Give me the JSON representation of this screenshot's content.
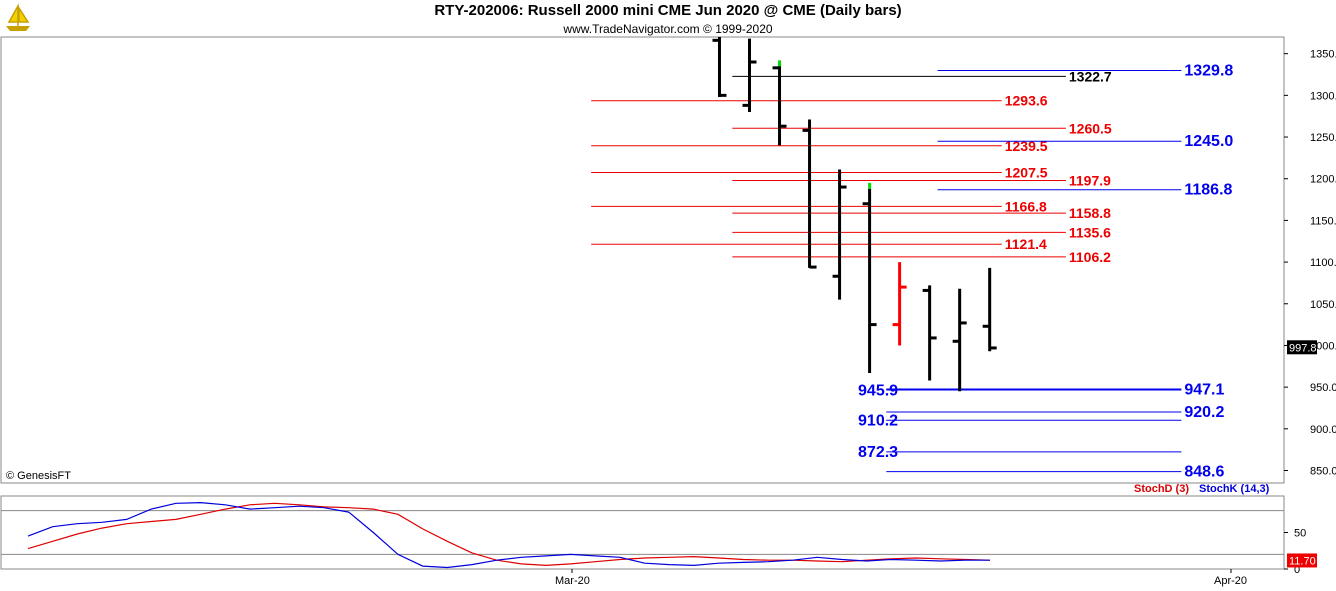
{
  "header": {
    "title": "RTY-202006:  Russell 2000 mini CME Jun 2020 @ CME  (Daily bars)",
    "subtitle": "www.TradeNavigator.com © 1999-2020",
    "copyright": "© GenesisFT"
  },
  "chart_data": [
    {
      "type": "bar",
      "subtype": "ohlc",
      "title": "RTY-202006:  Russell 2000 mini CME Jun 2020 @ CME  (Daily bars)",
      "ylim": [
        835,
        1370
      ],
      "yticks": [
        "1350.0",
        "1300.0",
        "1250.0",
        "1200.0",
        "1150.0",
        "1100.0",
        "1050.0",
        "1000.0",
        "950.0",
        "900.0",
        "850.0"
      ],
      "last_price": "997.8",
      "colors": {
        "up": "#000000",
        "highlight": "#ff0000",
        "marker": "#00dd00"
      },
      "bars": [
        {
          "o": 1366,
          "h": 1395,
          "l": 1298,
          "c": 1300
        },
        {
          "o": 1288,
          "h": 1368,
          "l": 1280,
          "c": 1340
        },
        {
          "o": 1333,
          "h": 1338,
          "l": 1240,
          "c": 1263
        },
        {
          "o": 1258,
          "h": 1271,
          "l": 1093,
          "c": 1094
        },
        {
          "o": 1083,
          "h": 1211,
          "l": 1055,
          "c": 1190
        },
        {
          "o": 1170,
          "h": 1188,
          "l": 967,
          "c": 1025
        },
        {
          "o": 1025,
          "h": 1100,
          "l": 1000,
          "c": 1070,
          "color": "red"
        },
        {
          "o": 1066,
          "h": 1072,
          "l": 958,
          "c": 1009
        },
        {
          "o": 1005,
          "h": 1068,
          "l": 945,
          "c": 1027
        },
        {
          "o": 1023,
          "h": 1093,
          "l": 993,
          "c": 997
        }
      ],
      "green_markers": [
        1336,
        1189
      ],
      "levels": [
        {
          "label": "1322.7",
          "value": 1322.7,
          "color": "#000000",
          "x1": 0.57,
          "x2": 0.83
        },
        {
          "label": "1293.6",
          "value": 1293.6,
          "color": "#ee0000",
          "x1": 0.46,
          "x2": 0.78
        },
        {
          "label": "1260.5",
          "value": 1260.5,
          "color": "#ee0000",
          "x1": 0.57,
          "x2": 0.83
        },
        {
          "label": "1239.5",
          "value": 1239.5,
          "color": "#ee0000",
          "x1": 0.46,
          "x2": 0.78
        },
        {
          "label": "1207.5",
          "value": 1207.5,
          "color": "#ee0000",
          "x1": 0.46,
          "x2": 0.78
        },
        {
          "label": "1197.9",
          "value": 1197.9,
          "color": "#ee0000",
          "x1": 0.57,
          "x2": 0.83
        },
        {
          "label": "1166.8",
          "value": 1166.8,
          "color": "#ee0000",
          "x1": 0.46,
          "x2": 0.78
        },
        {
          "label": "1158.8",
          "value": 1158.8,
          "color": "#ee0000",
          "x1": 0.57,
          "x2": 0.83
        },
        {
          "label": "1135.6",
          "value": 1135.6,
          "color": "#ee0000",
          "x1": 0.57,
          "x2": 0.83
        },
        {
          "label": "1121.4",
          "value": 1121.4,
          "color": "#ee0000",
          "x1": 0.46,
          "x2": 0.78
        },
        {
          "label": "1106.2",
          "value": 1106.2,
          "color": "#ee0000",
          "x1": 0.57,
          "x2": 0.83
        },
        {
          "label": "1329.8",
          "value": 1329.8,
          "color": "#0000ee",
          "x1": 0.73,
          "x2": 0.92
        },
        {
          "label": "1245.0",
          "value": 1245.0,
          "color": "#0000ee",
          "x1": 0.73,
          "x2": 0.92
        },
        {
          "label": "1186.8",
          "value": 1186.8,
          "color": "#0000ee",
          "x1": 0.73,
          "x2": 0.92
        },
        {
          "label": "947.1",
          "value": 947.1,
          "color": "#0000ee",
          "x1": 0.69,
          "x2": 0.92,
          "thick": true
        },
        {
          "label": "945.9",
          "value": 945.9,
          "color": "#0000ee",
          "left": true
        },
        {
          "label": "920.2",
          "value": 920.2,
          "color": "#0000ee",
          "x1": 0.69,
          "x2": 0.92
        },
        {
          "label": "910.2",
          "value": 910.2,
          "color": "#0000ee",
          "x1": 0.69,
          "x2": 0.92,
          "left": true
        },
        {
          "label": "872.3",
          "value": 872.3,
          "color": "#0000ee",
          "x1": 0.69,
          "x2": 0.92,
          "left": true
        },
        {
          "label": "848.6",
          "value": 848.6,
          "color": "#0000ee",
          "x1": 0.69,
          "x2": 0.92
        }
      ]
    },
    {
      "type": "line",
      "title": "Stochastic",
      "ylim": [
        0,
        100
      ],
      "yticks": [
        "50",
        "0"
      ],
      "reference_levels": [
        80,
        20
      ],
      "x_labels": [
        "Mar-20",
        "Apr-20"
      ],
      "last_value": "11.70",
      "series": [
        {
          "name": "StochD (3)",
          "color": "#dd0000",
          "values": [
            28,
            38,
            48,
            56,
            62,
            65,
            68,
            75,
            82,
            88,
            90,
            88,
            85,
            84,
            82,
            75,
            55,
            38,
            22,
            12,
            7,
            5,
            7,
            10,
            13,
            15,
            16,
            17,
            15,
            13,
            12,
            12,
            11,
            10,
            12,
            14,
            15,
            14,
            13,
            12
          ]
        },
        {
          "name": "StochK (14,3)",
          "color": "#0000dd",
          "values": [
            45,
            58,
            62,
            64,
            68,
            82,
            90,
            91,
            88,
            82,
            84,
            86,
            84,
            78,
            50,
            20,
            4,
            2,
            6,
            12,
            16,
            18,
            20,
            18,
            16,
            8,
            6,
            5,
            8,
            9,
            10,
            12,
            16,
            13,
            11,
            13,
            12,
            11,
            12,
            12
          ]
        }
      ]
    }
  ]
}
